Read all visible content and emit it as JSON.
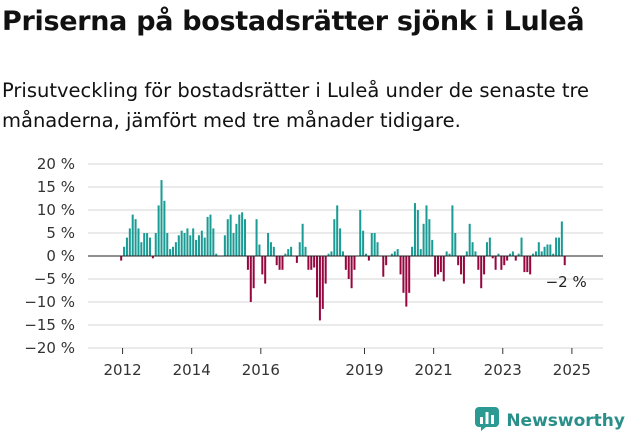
{
  "header": {
    "title": "Priserna på bostadsrätter sjönk i Luleå",
    "subtitle": "Prisutveckling för bostadsrätter i Luleå under de senaste tre månaderna, jämfört med tre månader tidigare."
  },
  "brand": {
    "name": "Newsworthy",
    "icon": "chart-logo-icon"
  },
  "colors": {
    "positive": "#1a9b94",
    "negative": "#96073f",
    "grid": "#d5d5d5",
    "zero": "#222222"
  },
  "chart_data": {
    "type": "bar",
    "title": "",
    "xlabel": "",
    "ylabel": "",
    "ylim": [
      -20,
      20
    ],
    "y_ticks": [
      20,
      15,
      10,
      5,
      0,
      -5,
      -10,
      -15,
      -20
    ],
    "y_tick_labels": [
      "20 %",
      "15 %",
      "10 %",
      "5 %",
      "0 %",
      "−5 %",
      "−10 %",
      "−15 %",
      "−20 %"
    ],
    "x_ticks": [
      2012,
      2014,
      2016,
      2019,
      2021,
      2023,
      2025
    ],
    "x_tick_labels": [
      "2012",
      "2014",
      "2016",
      "2019",
      "2021",
      "2023",
      "2025"
    ],
    "x_range": [
      2011.0,
      2025.9
    ],
    "series": [
      {
        "start": 2011.96,
        "step": 0.08333,
        "values": [
          -1,
          2,
          4,
          6,
          9,
          8,
          6,
          3,
          5,
          5,
          4,
          -0.5,
          5,
          11,
          16.5,
          12,
          5,
          1.5,
          2,
          3,
          4.5,
          5.5,
          5,
          6,
          4.5,
          6,
          3.5,
          4.5,
          5.5,
          4,
          8.5,
          9,
          6,
          0.5,
          0,
          0,
          4.5,
          8,
          9,
          5,
          7,
          9,
          9.5,
          8,
          -3,
          -10,
          -7,
          8,
          2.5,
          -4,
          -6,
          5,
          3,
          2,
          -2,
          -3,
          -3,
          0.5,
          1.5,
          2,
          0,
          -1.5,
          3,
          7,
          2,
          -3,
          -3,
          -2.5,
          -9,
          -14,
          -11.5,
          -6,
          0.5,
          1,
          8,
          11,
          6,
          1,
          -3,
          -5,
          -7,
          -3,
          0,
          10,
          5.5,
          0.5,
          -1,
          5,
          5,
          3,
          0,
          -4.5,
          -2,
          0,
          0.5,
          1,
          1.5,
          -4,
          -8,
          -11,
          -8,
          2,
          11.5,
          10,
          1.5,
          7,
          11,
          8,
          3.5,
          -4.5,
          -4,
          -3.5,
          -5.5,
          1,
          0.5,
          11,
          5,
          -2,
          -4,
          -6,
          1,
          7,
          3,
          1,
          -3,
          -7,
          -4,
          3,
          4,
          -0.5,
          -3,
          0.5,
          -3,
          -2,
          -1,
          0.5,
          1,
          -1,
          0.5,
          4,
          -3.5,
          -3.5,
          -4,
          0.5,
          1,
          3,
          1,
          2,
          2.5,
          2.5,
          0.5,
          4,
          4,
          7.5,
          -2
        ]
      }
    ],
    "end_label": "−2 %"
  }
}
